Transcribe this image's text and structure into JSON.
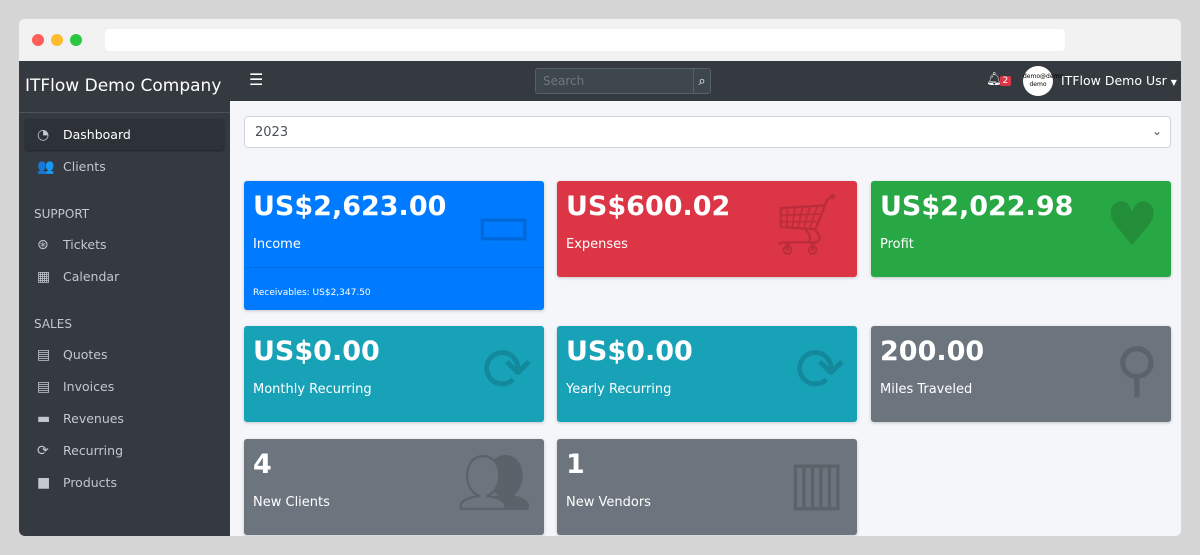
{
  "sidebar": {
    "brand": "ITFlow Demo Company",
    "items": [
      {
        "label": "Dashboard",
        "icon": "tachometer-icon"
      },
      {
        "label": "Clients",
        "icon": "users-icon"
      }
    ],
    "support_header": "SUPPORT",
    "support": [
      {
        "label": "Tickets",
        "icon": "life-ring-icon"
      },
      {
        "label": "Calendar",
        "icon": "calendar-icon"
      }
    ],
    "sales_header": "SALES",
    "sales": [
      {
        "label": "Quotes",
        "icon": "file-icon"
      },
      {
        "label": "Invoices",
        "icon": "invoice-icon"
      },
      {
        "label": "Revenues",
        "icon": "credit-card-icon"
      },
      {
        "label": "Recurring",
        "icon": "sync-icon"
      },
      {
        "label": "Products",
        "icon": "box-icon"
      }
    ]
  },
  "topbar": {
    "menu_icon": "bars-icon",
    "search_placeholder": "Search",
    "notifications": "2",
    "avatar_text": "demo@demo demo",
    "user": "ITFlow Demo Usr"
  },
  "year_select": "2023",
  "cards": [
    {
      "value": "US$2,623.00",
      "label": "Income",
      "color": "#007bff",
      "footer": "Receivables: US$2,347.50",
      "icon": "credit-card-icon"
    },
    {
      "value": "US$600.02",
      "label": "Expenses",
      "color": "#dc3545",
      "icon": "shopping-cart-icon"
    },
    {
      "value": "US$2,022.98",
      "label": "Profit",
      "color": "#28a745",
      "icon": "heart-icon"
    },
    {
      "value": "US$0.00",
      "label": "Monthly Recurring",
      "color": "#17a2b8",
      "icon": "sync-icon"
    },
    {
      "value": "US$0.00",
      "label": "Yearly Recurring",
      "color": "#17a2b8",
      "icon": "sync-icon"
    },
    {
      "value": "200.00",
      "label": "Miles Traveled",
      "color": "#6c757d",
      "icon": "route-icon"
    },
    {
      "value": "4",
      "label": "New Clients",
      "color": "#6c757d",
      "icon": "users-icon"
    },
    {
      "value": "1",
      "label": "New Vendors",
      "color": "#6c757d",
      "icon": "building-icon"
    }
  ]
}
